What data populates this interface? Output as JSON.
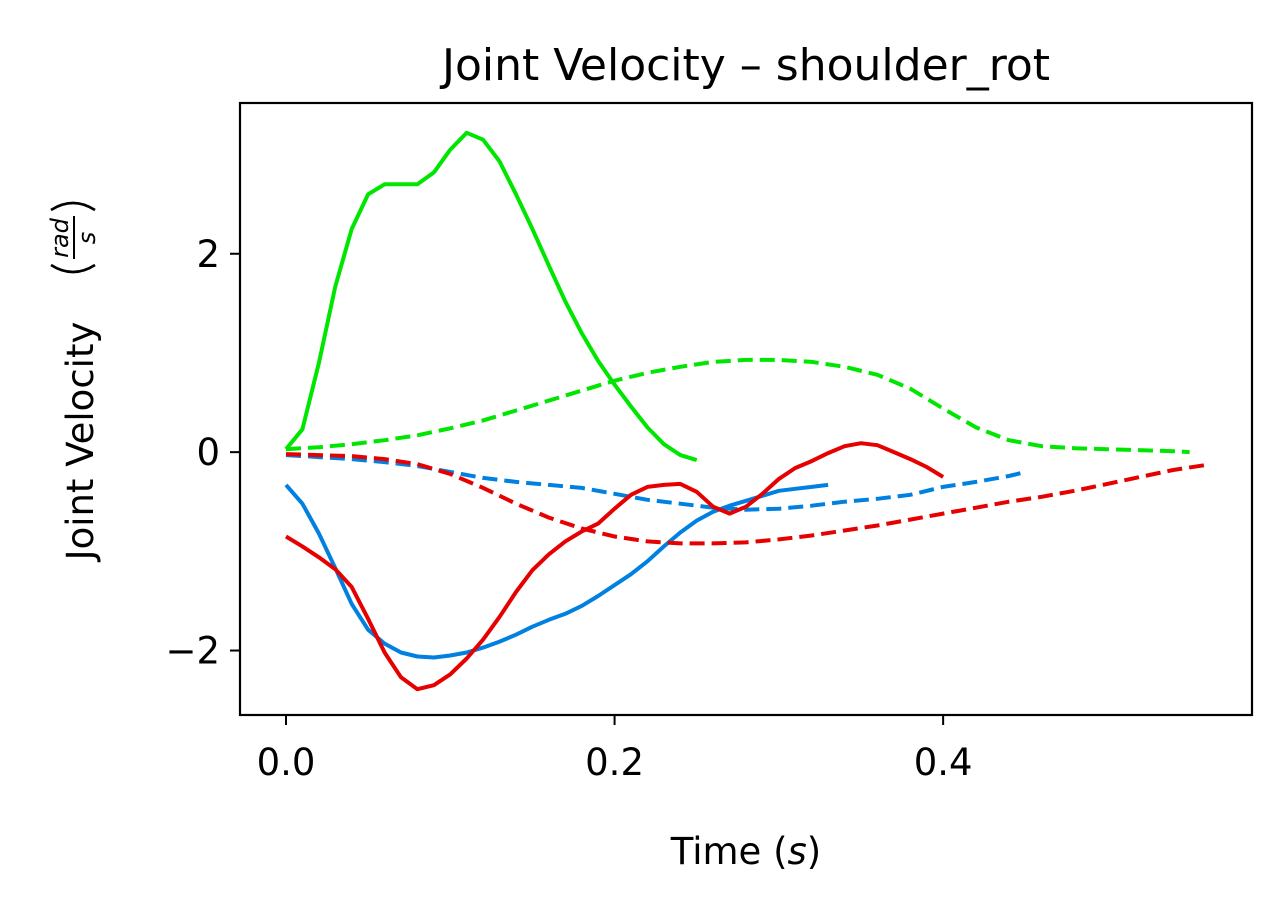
{
  "chart_data": {
    "type": "line",
    "title": "Joint Velocity – shoulder_rot",
    "xlabel": "Time (s)",
    "xlabel_main": "Time (",
    "xlabel_unit": "s",
    "xlabel_end": ")",
    "ylabel": "Joint Velocity (rad/s)",
    "ylabel_main": "Joint Velocity",
    "ylabel_unit_num": "rad",
    "ylabel_unit_den": "s",
    "xlim": [
      -0.028,
      0.588
    ],
    "ylim": [
      -2.65,
      3.52
    ],
    "xticks": [
      0.0,
      0.2,
      0.4
    ],
    "xtick_labels": [
      "0.0",
      "0.2",
      "0.4"
    ],
    "yticks": [
      -2,
      0,
      2
    ],
    "ytick_labels": [
      "−2",
      "0",
      "2"
    ],
    "grid": false,
    "series": [
      {
        "color": "#00e600",
        "style": "solid",
        "x": [
          0.0,
          0.01,
          0.02,
          0.03,
          0.04,
          0.05,
          0.06,
          0.07,
          0.08,
          0.09,
          0.1,
          0.11,
          0.12,
          0.13,
          0.14,
          0.15,
          0.16,
          0.17,
          0.18,
          0.19,
          0.2,
          0.21,
          0.22,
          0.23,
          0.24,
          0.25
        ],
        "y": [
          0.03,
          0.23,
          0.9,
          1.67,
          2.25,
          2.6,
          2.7,
          2.7,
          2.7,
          2.82,
          3.05,
          3.22,
          3.15,
          2.93,
          2.6,
          2.25,
          1.88,
          1.52,
          1.2,
          0.92,
          0.68,
          0.46,
          0.25,
          0.08,
          -0.03,
          -0.08
        ]
      },
      {
        "color": "#00e600",
        "style": "dashed",
        "x": [
          0.0,
          0.02,
          0.04,
          0.06,
          0.08,
          0.1,
          0.12,
          0.14,
          0.16,
          0.18,
          0.2,
          0.22,
          0.24,
          0.26,
          0.28,
          0.3,
          0.32,
          0.34,
          0.36,
          0.38,
          0.4,
          0.42,
          0.44,
          0.46,
          0.48,
          0.5,
          0.52,
          0.54,
          0.55
        ],
        "y": [
          0.03,
          0.05,
          0.08,
          0.12,
          0.17,
          0.24,
          0.32,
          0.42,
          0.52,
          0.62,
          0.72,
          0.8,
          0.86,
          0.91,
          0.93,
          0.93,
          0.91,
          0.86,
          0.78,
          0.64,
          0.44,
          0.25,
          0.12,
          0.06,
          0.04,
          0.03,
          0.02,
          0.01,
          0.0
        ]
      },
      {
        "color": "#0080e0",
        "style": "solid",
        "x": [
          0.0,
          0.01,
          0.02,
          0.03,
          0.04,
          0.05,
          0.06,
          0.07,
          0.08,
          0.09,
          0.1,
          0.11,
          0.12,
          0.13,
          0.14,
          0.15,
          0.16,
          0.17,
          0.18,
          0.19,
          0.2,
          0.21,
          0.22,
          0.23,
          0.24,
          0.25,
          0.26,
          0.27,
          0.28,
          0.29,
          0.3,
          0.31,
          0.32,
          0.33
        ],
        "y": [
          -0.33,
          -0.52,
          -0.82,
          -1.17,
          -1.53,
          -1.79,
          -1.93,
          -2.02,
          -2.06,
          -2.07,
          -2.05,
          -2.02,
          -1.97,
          -1.91,
          -1.84,
          -1.76,
          -1.69,
          -1.63,
          -1.55,
          -1.45,
          -1.34,
          -1.23,
          -1.1,
          -0.95,
          -0.81,
          -0.69,
          -0.6,
          -0.54,
          -0.49,
          -0.44,
          -0.39,
          -0.37,
          -0.35,
          -0.33
        ]
      },
      {
        "color": "#0080e0",
        "style": "dashed",
        "x": [
          0.0,
          0.02,
          0.04,
          0.06,
          0.08,
          0.1,
          0.12,
          0.14,
          0.16,
          0.18,
          0.2,
          0.22,
          0.24,
          0.26,
          0.28,
          0.3,
          0.32,
          0.34,
          0.36,
          0.38,
          0.4,
          0.42,
          0.44,
          0.45
        ],
        "y": [
          -0.03,
          -0.05,
          -0.07,
          -0.1,
          -0.14,
          -0.2,
          -0.26,
          -0.3,
          -0.33,
          -0.36,
          -0.42,
          -0.48,
          -0.52,
          -0.56,
          -0.58,
          -0.57,
          -0.54,
          -0.5,
          -0.47,
          -0.43,
          -0.35,
          -0.3,
          -0.24,
          -0.2
        ]
      },
      {
        "color": "#e60000",
        "style": "solid",
        "x": [
          0.0,
          0.01,
          0.02,
          0.03,
          0.04,
          0.05,
          0.06,
          0.07,
          0.08,
          0.09,
          0.1,
          0.11,
          0.12,
          0.13,
          0.14,
          0.15,
          0.16,
          0.17,
          0.18,
          0.19,
          0.2,
          0.21,
          0.22,
          0.23,
          0.24,
          0.25,
          0.26,
          0.27,
          0.28,
          0.29,
          0.3,
          0.31,
          0.32,
          0.33,
          0.34,
          0.35,
          0.36,
          0.37,
          0.38,
          0.39,
          0.4
        ],
        "y": [
          -0.85,
          -0.95,
          -1.06,
          -1.18,
          -1.36,
          -1.68,
          -2.02,
          -2.27,
          -2.39,
          -2.35,
          -2.24,
          -2.08,
          -1.89,
          -1.66,
          -1.41,
          -1.19,
          -1.03,
          -0.9,
          -0.8,
          -0.72,
          -0.57,
          -0.43,
          -0.35,
          -0.33,
          -0.32,
          -0.4,
          -0.55,
          -0.62,
          -0.55,
          -0.42,
          -0.27,
          -0.16,
          -0.09,
          -0.01,
          0.06,
          0.09,
          0.07,
          0.0,
          -0.07,
          -0.15,
          -0.25
        ]
      },
      {
        "color": "#e60000",
        "style": "dashed",
        "x": [
          0.0,
          0.02,
          0.04,
          0.06,
          0.08,
          0.1,
          0.12,
          0.14,
          0.16,
          0.18,
          0.2,
          0.22,
          0.24,
          0.26,
          0.28,
          0.3,
          0.32,
          0.34,
          0.36,
          0.38,
          0.4,
          0.42,
          0.44,
          0.46,
          0.48,
          0.5,
          0.52,
          0.54,
          0.56
        ],
        "y": [
          -0.02,
          -0.03,
          -0.04,
          -0.07,
          -0.12,
          -0.22,
          -0.36,
          -0.52,
          -0.66,
          -0.77,
          -0.85,
          -0.9,
          -0.92,
          -0.92,
          -0.91,
          -0.88,
          -0.84,
          -0.79,
          -0.74,
          -0.68,
          -0.62,
          -0.56,
          -0.5,
          -0.45,
          -0.39,
          -0.32,
          -0.25,
          -0.18,
          -0.13
        ]
      }
    ]
  }
}
